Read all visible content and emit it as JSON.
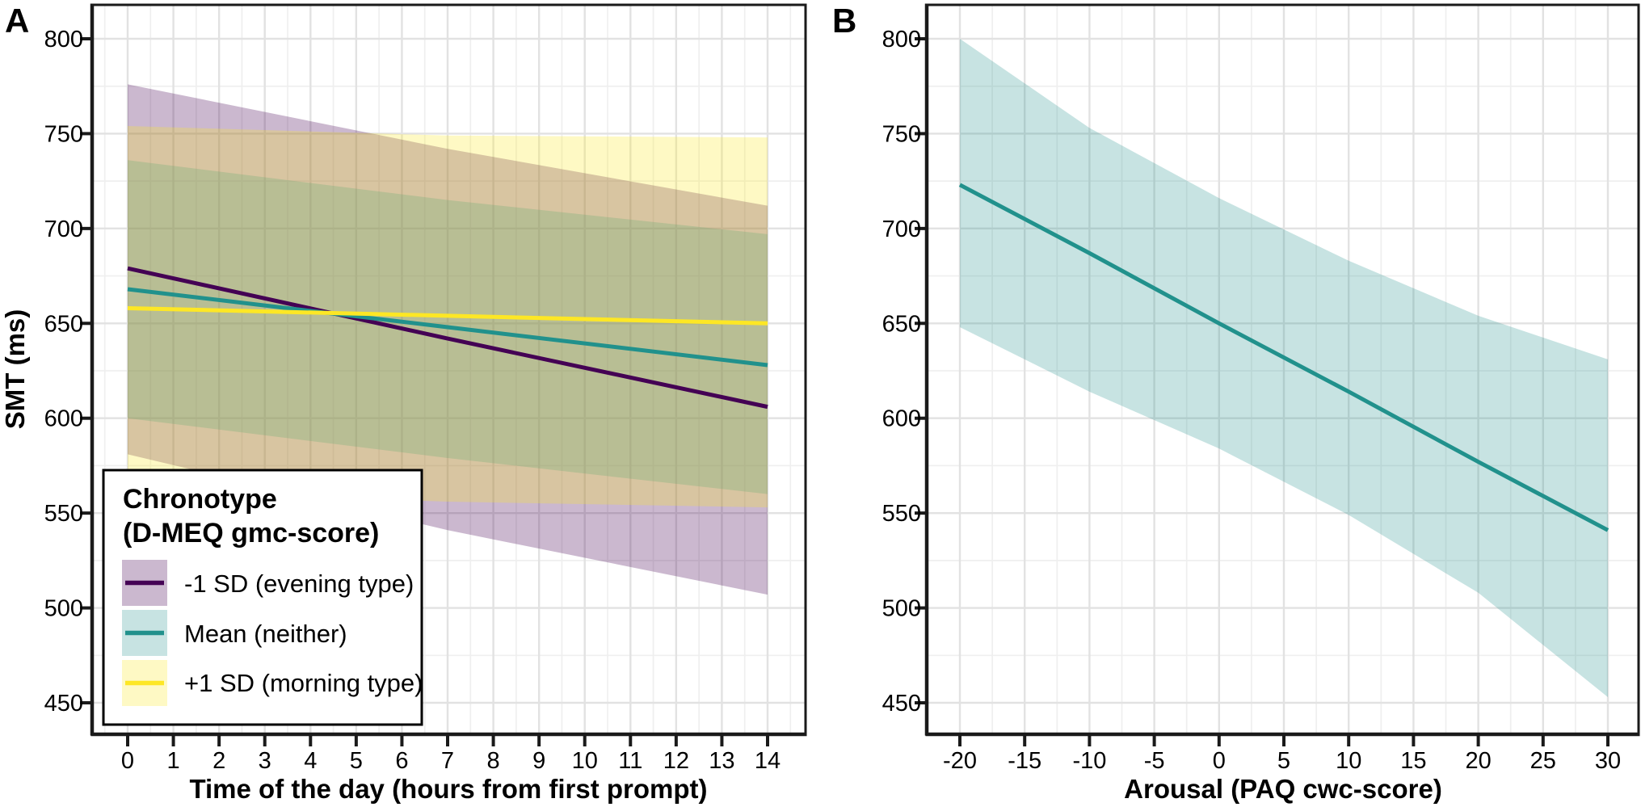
{
  "figure": {
    "background": "#ffffff",
    "border_color": "#1a1a1a",
    "grid_major_color": "#e2e2e2",
    "grid_minor_color": "#efefef",
    "text_color": "#000000",
    "legend_bg": "#ffffff"
  },
  "chart_data": [
    {
      "type": "line",
      "panel_label": "A",
      "xlabel": "Time of the day (hours from first prompt)",
      "ylabel": "SMT (ms)",
      "x_ticks": [
        0,
        1,
        2,
        3,
        4,
        5,
        6,
        7,
        8,
        9,
        10,
        11,
        12,
        13,
        14
      ],
      "y_ticks": [
        450,
        500,
        550,
        600,
        650,
        700,
        750,
        800
      ],
      "xlim": [
        -0.8,
        14.8
      ],
      "ylim": [
        433,
        818
      ],
      "grid": "major+minor",
      "legend": {
        "title_lines": [
          "Chronotype",
          "(D-MEQ gmc-score)"
        ],
        "position": "inside bottom-left"
      },
      "series": [
        {
          "name": "-1 SD (evening type)",
          "line_color": "#440154",
          "fill_color": "#440154",
          "fill_opacity": 0.28,
          "x": [
            0,
            7,
            14
          ],
          "y": [
            679,
            642,
            606
          ],
          "ribbon_upper": [
            776,
            742,
            712
          ],
          "ribbon_lower": [
            581,
            541,
            507
          ]
        },
        {
          "name": "Mean (neither)",
          "line_color": "#21918c",
          "fill_color": "#21918c",
          "fill_opacity": 0.25,
          "x": [
            0,
            7,
            14
          ],
          "y": [
            668,
            648,
            628
          ],
          "ribbon_upper": [
            736,
            715,
            697
          ],
          "ribbon_lower": [
            600,
            579,
            560
          ]
        },
        {
          "name": "+1 SD (morning type)",
          "line_color": "#fde725",
          "fill_color": "#fde725",
          "fill_opacity": 0.27,
          "x": [
            0,
            7,
            14
          ],
          "y": [
            658,
            654,
            650
          ],
          "ribbon_upper": [
            754,
            749,
            748
          ],
          "ribbon_lower": [
            562,
            556,
            553
          ]
        }
      ]
    },
    {
      "type": "line",
      "panel_label": "B",
      "xlabel": "Arousal (PAQ cwc-score)",
      "ylabel": "",
      "x_ticks": [
        -20,
        -15,
        -10,
        -5,
        0,
        5,
        10,
        15,
        20,
        25,
        30
      ],
      "y_ticks": [
        450,
        500,
        550,
        600,
        650,
        700,
        750,
        800
      ],
      "xlim": [
        -22.6,
        32.4
      ],
      "ylim": [
        433,
        818
      ],
      "grid": "major+minor",
      "series": [
        {
          "name": "",
          "line_color": "#21918c",
          "fill_color": "#21918c",
          "fill_opacity": 0.25,
          "x": [
            -20,
            -10,
            0,
            10,
            20,
            30
          ],
          "y": [
            723,
            687,
            650,
            614,
            577,
            541
          ],
          "ribbon_upper": [
            800,
            753,
            716,
            683,
            654,
            631
          ],
          "ribbon_lower": [
            648,
            614,
            584,
            549,
            508,
            453
          ]
        }
      ]
    }
  ]
}
